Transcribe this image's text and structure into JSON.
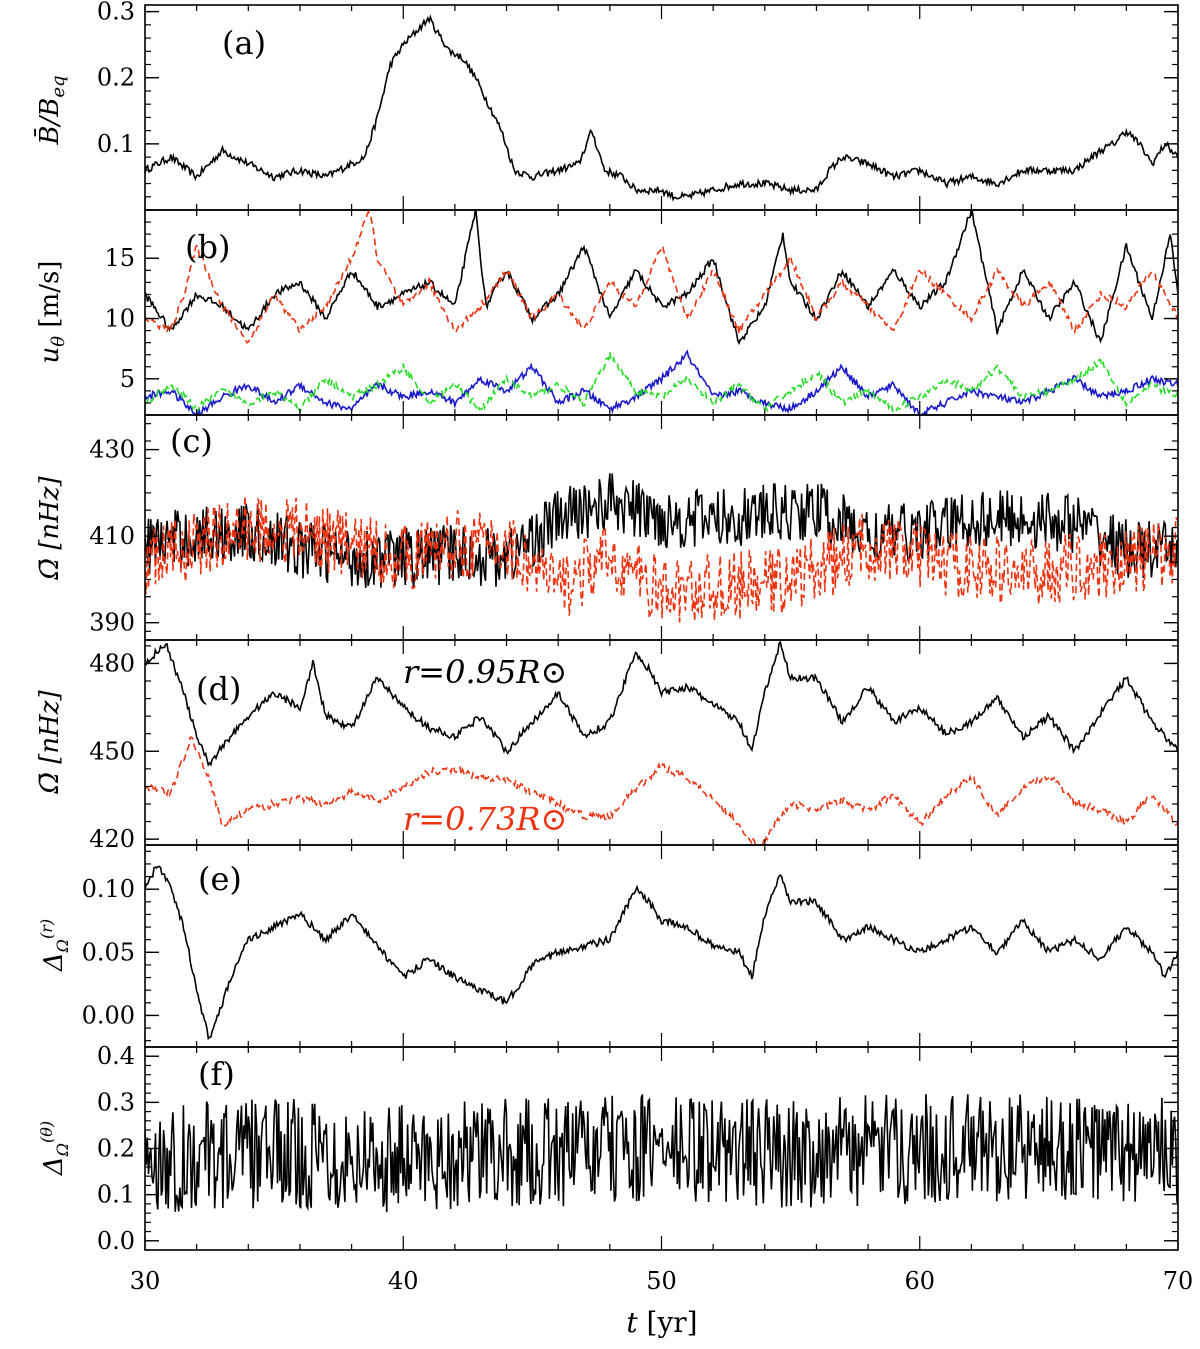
{
  "chart_data": [
    {
      "type": "line",
      "panel": "(a)",
      "ylabel": "B̄/B_eq",
      "ylim": [
        0,
        0.31
      ],
      "yticks": [
        0.1,
        0.2,
        0.3
      ],
      "ytick_labels": [
        "0.1",
        "0.2",
        "0.3"
      ],
      "series": [
        {
          "color": "#000000",
          "dash": "solid",
          "x": [
            30,
            31,
            32,
            33,
            34,
            35,
            36,
            37,
            38,
            38.5,
            39,
            39.5,
            40,
            40.5,
            41,
            41.3,
            41.8,
            42.3,
            42.8,
            43.3,
            43.8,
            44.3,
            45,
            46,
            46.8,
            47.3,
            47.8,
            48.5,
            49,
            50,
            50.5,
            51,
            52,
            53,
            54,
            55,
            56,
            56.5,
            57,
            58,
            59,
            60,
            61,
            62,
            63,
            64,
            65,
            66,
            67,
            67.5,
            68,
            68.5,
            69,
            69.5,
            70
          ],
          "y": [
            0.06,
            0.08,
            0.05,
            0.09,
            0.07,
            0.05,
            0.06,
            0.05,
            0.07,
            0.08,
            0.14,
            0.22,
            0.25,
            0.27,
            0.29,
            0.27,
            0.24,
            0.23,
            0.2,
            0.16,
            0.12,
            0.06,
            0.05,
            0.06,
            0.07,
            0.12,
            0.06,
            0.05,
            0.03,
            0.03,
            0.02,
            0.02,
            0.03,
            0.04,
            0.04,
            0.03,
            0.03,
            0.06,
            0.08,
            0.07,
            0.05,
            0.06,
            0.04,
            0.05,
            0.04,
            0.06,
            0.06,
            0.06,
            0.09,
            0.1,
            0.12,
            0.1,
            0.07,
            0.1,
            0.08
          ]
        }
      ]
    },
    {
      "type": "line",
      "panel": "(b)",
      "ylabel": "u_θ [m/s]",
      "ylim": [
        2,
        19
      ],
      "yticks": [
        5,
        10,
        15
      ],
      "ytick_labels": [
        "5",
        "10",
        "15"
      ],
      "series": [
        {
          "color": "#000000",
          "dash": "solid",
          "x": [
            30,
            31,
            32,
            33,
            34,
            35,
            36,
            37,
            38,
            39,
            40,
            41,
            42,
            42.8,
            43.2,
            44,
            45,
            46,
            47,
            48,
            49,
            50,
            51,
            52,
            53,
            54,
            54.7,
            55,
            56,
            57,
            58,
            59,
            60,
            61,
            62,
            63,
            64,
            65,
            66,
            67,
            68,
            69,
            69.7,
            70
          ],
          "y": [
            12,
            9,
            12,
            11,
            9,
            12,
            13,
            10,
            14,
            11,
            12,
            13,
            11,
            19,
            11,
            14,
            10,
            12,
            16,
            10,
            14,
            11,
            12,
            15,
            8,
            11,
            17,
            13,
            10,
            14,
            11,
            14,
            11,
            13,
            19,
            9,
            14,
            10,
            13,
            8,
            16,
            10,
            17,
            12
          ]
        },
        {
          "color": "#ee3311",
          "dash": "dashed",
          "x": [
            30,
            31,
            31.5,
            32,
            33,
            34,
            35,
            36,
            37,
            38,
            38.7,
            39,
            40,
            41,
            42,
            43,
            44,
            45,
            46,
            47,
            48,
            49,
            50,
            51,
            52,
            53,
            54,
            55,
            56,
            57,
            58,
            59,
            60,
            61,
            62,
            63,
            64,
            65,
            66,
            67,
            68,
            69,
            70
          ],
          "y": [
            10,
            9,
            12,
            16,
            11,
            8,
            12,
            9,
            11,
            15,
            19,
            15,
            11,
            13,
            9,
            11,
            14,
            10,
            12,
            9,
            13,
            11,
            16,
            10,
            14,
            9,
            12,
            15,
            10,
            13,
            11,
            9,
            14,
            12,
            10,
            14,
            11,
            13,
            9,
            12,
            11,
            14,
            10
          ]
        },
        {
          "color": "#1a1acc",
          "dash": "solid",
          "x": [
            30,
            31,
            32,
            33,
            34,
            35,
            36,
            37,
            38,
            39,
            40,
            41,
            42,
            43,
            44,
            45,
            46,
            47,
            48,
            49,
            50,
            51,
            52,
            53,
            54,
            55,
            56,
            57,
            58,
            59,
            60,
            61,
            62,
            63,
            64,
            65,
            66,
            67,
            68,
            69,
            70
          ],
          "y": [
            3.5,
            4,
            2,
            3.5,
            4.5,
            3,
            4.5,
            3,
            2.5,
            4.5,
            3.5,
            4,
            3,
            5,
            4,
            6,
            3,
            4,
            2.5,
            3.5,
            5,
            7,
            3.5,
            4,
            3,
            2.5,
            4,
            6,
            3.5,
            4.5,
            2,
            3,
            4,
            3.5,
            3,
            4,
            5,
            3.5,
            4,
            5,
            4.5
          ]
        },
        {
          "color": "#22dd22",
          "dash": "dashed",
          "x": [
            30,
            31,
            32,
            33,
            34,
            35,
            36,
            37,
            38,
            39,
            40,
            41,
            42,
            43,
            44,
            45,
            46,
            47,
            48,
            49,
            50,
            51,
            52,
            53,
            54,
            55,
            56,
            57,
            58,
            59,
            60,
            61,
            62,
            63,
            64,
            65,
            66,
            67,
            68,
            69,
            70
          ],
          "y": [
            3,
            4.5,
            2.5,
            4,
            3,
            4,
            2.5,
            5,
            3.5,
            4.5,
            6,
            3,
            4.5,
            2.5,
            5,
            3.5,
            4.5,
            3,
            7,
            4,
            3.5,
            5,
            3,
            4.5,
            2.5,
            4,
            5.5,
            3,
            4,
            2.5,
            3.5,
            5,
            4,
            6,
            3.5,
            4,
            5,
            6.5,
            3,
            4.5,
            3.5
          ]
        }
      ]
    },
    {
      "type": "line",
      "panel": "(c)",
      "ylabel": "Ω̄ [nHz]",
      "ylim": [
        386,
        438
      ],
      "yticks": [
        390,
        410,
        430
      ],
      "ytick_labels": [
        "390",
        "410",
        "430"
      ],
      "series": [
        {
          "color": "#000000",
          "dash": "solid",
          "x": [
            30,
            32,
            34,
            36,
            38,
            40,
            42,
            44,
            46,
            48,
            50,
            52,
            54,
            56,
            58,
            60,
            62,
            64,
            66,
            68,
            70
          ],
          "y": [
            408,
            410,
            411,
            407,
            405,
            405,
            406,
            405,
            414,
            418,
            414,
            414,
            415,
            416,
            410,
            411,
            414,
            414,
            413,
            407,
            406
          ],
          "spread": 7
        },
        {
          "color": "#ee3311",
          "dash": "dashed",
          "x": [
            30,
            32,
            34,
            36,
            38,
            40,
            42,
            44,
            46,
            48,
            50,
            52,
            54,
            56,
            58,
            60,
            62,
            64,
            66,
            68,
            70
          ],
          "y": [
            404,
            408,
            412,
            411,
            408,
            405,
            408,
            408,
            398,
            405,
            397,
            398,
            399,
            402,
            408,
            405,
            403,
            401,
            403,
            404,
            407
          ],
          "spread": 8
        }
      ]
    },
    {
      "type": "line",
      "panel": "(d)",
      "ylabel": "Ω̄ [nHz]",
      "ylim": [
        418,
        488
      ],
      "yticks": [
        420,
        450,
        480
      ],
      "ytick_labels": [
        "420",
        "450",
        "480"
      ],
      "annotations": [
        "r=0.95R⊙",
        "r=0.73R⊙"
      ],
      "series": [
        {
          "color": "#000000",
          "dash": "solid",
          "name": "r=0.95R⊙",
          "x": [
            30,
            30.8,
            31.5,
            32,
            32.5,
            33,
            34,
            35,
            36,
            36.5,
            37,
            38,
            39,
            40,
            41,
            42,
            43,
            44,
            45,
            46,
            47,
            48,
            49,
            49.5,
            50,
            51,
            52,
            53,
            53.5,
            54,
            54.6,
            55,
            56,
            57,
            58,
            59,
            60,
            61,
            62,
            63,
            64,
            65,
            66,
            67,
            68,
            69,
            70
          ],
          "y": [
            480,
            487,
            470,
            455,
            445,
            452,
            462,
            470,
            465,
            480,
            462,
            458,
            475,
            465,
            458,
            455,
            462,
            450,
            460,
            470,
            455,
            460,
            484,
            478,
            470,
            472,
            466,
            460,
            450,
            470,
            487,
            475,
            475,
            460,
            472,
            460,
            465,
            456,
            460,
            468,
            455,
            462,
            450,
            463,
            475,
            460,
            450
          ]
        },
        {
          "color": "#ee3311",
          "dash": "dashed",
          "name": "r=0.73R⊙",
          "x": [
            30,
            31,
            31.8,
            32.5,
            33,
            34,
            35,
            36,
            37,
            38,
            39,
            40,
            41,
            42,
            43,
            44,
            45,
            46,
            47,
            48,
            49,
            50,
            51,
            52,
            53,
            53.8,
            54.5,
            55,
            56,
            57,
            58,
            59,
            60,
            61,
            62,
            63,
            64,
            65,
            66,
            67,
            68,
            69,
            70
          ],
          "y": [
            438,
            436,
            455,
            440,
            425,
            430,
            432,
            434,
            432,
            436,
            433,
            438,
            443,
            444,
            441,
            440,
            436,
            432,
            428,
            428,
            437,
            445,
            441,
            434,
            425,
            416,
            427,
            432,
            430,
            433,
            430,
            435,
            425,
            435,
            441,
            428,
            437,
            442,
            433,
            430,
            426,
            435,
            425
          ]
        }
      ]
    },
    {
      "type": "line",
      "panel": "(e)",
      "ylabel": "Δ_Ω^(r)",
      "ylim": [
        -0.025,
        0.135
      ],
      "yticks": [
        0.0,
        0.05,
        0.1
      ],
      "ytick_labels": [
        "0.00",
        "0.05",
        "0.10"
      ],
      "series": [
        {
          "color": "#000000",
          "dash": "solid",
          "x": [
            30,
            30.5,
            31,
            31.5,
            32,
            32.5,
            33,
            33.5,
            34,
            35,
            36,
            37,
            38,
            39,
            40,
            41,
            42,
            43,
            44,
            45,
            46,
            47,
            48,
            49,
            49.5,
            50,
            51,
            52,
            53,
            53.5,
            54,
            54.6,
            55,
            56,
            57,
            58,
            59,
            60,
            61,
            62,
            63,
            64,
            65,
            66,
            67,
            68,
            69,
            69.5,
            70
          ],
          "y": [
            0.1,
            0.12,
            0.1,
            0.07,
            0.02,
            -0.02,
            0.01,
            0.04,
            0.06,
            0.07,
            0.08,
            0.06,
            0.08,
            0.055,
            0.03,
            0.045,
            0.03,
            0.02,
            0.01,
            0.04,
            0.05,
            0.055,
            0.06,
            0.1,
            0.09,
            0.075,
            0.07,
            0.055,
            0.05,
            0.03,
            0.08,
            0.11,
            0.09,
            0.09,
            0.06,
            0.07,
            0.06,
            0.05,
            0.06,
            0.07,
            0.05,
            0.075,
            0.05,
            0.06,
            0.045,
            0.07,
            0.05,
            0.03,
            0.05
          ]
        }
      ]
    },
    {
      "type": "line",
      "panel": "(f)",
      "ylabel": "Δ_Ω^(θ)",
      "ylim": [
        -0.02,
        0.42
      ],
      "yticks": [
        0.0,
        0.1,
        0.2,
        0.3,
        0.4
      ],
      "ytick_labels": [
        "0.0",
        "0.1",
        "0.2",
        "0.3",
        "0.4"
      ],
      "series": [
        {
          "color": "#000000",
          "dash": "solid",
          "x": [
            30,
            35,
            40,
            45,
            50,
            55,
            60,
            65,
            70
          ],
          "y": [
            0.18,
            0.19,
            0.18,
            0.19,
            0.2,
            0.19,
            0.2,
            0.2,
            0.19
          ],
          "spread": 0.12
        }
      ]
    }
  ],
  "xaxis": {
    "xlim": [
      30,
      70
    ],
    "xticks": [
      30,
      40,
      50,
      60,
      70
    ],
    "xtick_labels": [
      "30",
      "40",
      "50",
      "60",
      "70"
    ],
    "xlabel": "t [yr]"
  },
  "labels": {
    "panel_a": "(a)",
    "panel_b": "(b)",
    "panel_c": "(c)",
    "panel_d": "(d)",
    "panel_e": "(e)",
    "panel_f": "(f)",
    "ylab_a": "B̄/B",
    "ylab_a_sub": "eq",
    "ylab_b": "u",
    "ylab_b_sub": "θ",
    "ylab_b_unit": " [m/s]",
    "ylab_c": "Ω̄ [nHz]",
    "ylab_d": "Ω̄ [nHz]",
    "ylab_e": "Δ",
    "ylab_e_sub": "Ω",
    "ylab_e_sup": "(r)",
    "ylab_f": "Δ",
    "ylab_f_sub": "Ω",
    "ylab_f_sup": "(θ)",
    "annot_d_black": "r=0.95R⊙",
    "annot_d_red": "r=0.73R⊙",
    "xlab_t": "t",
    "xlab_unit": " [yr]"
  }
}
